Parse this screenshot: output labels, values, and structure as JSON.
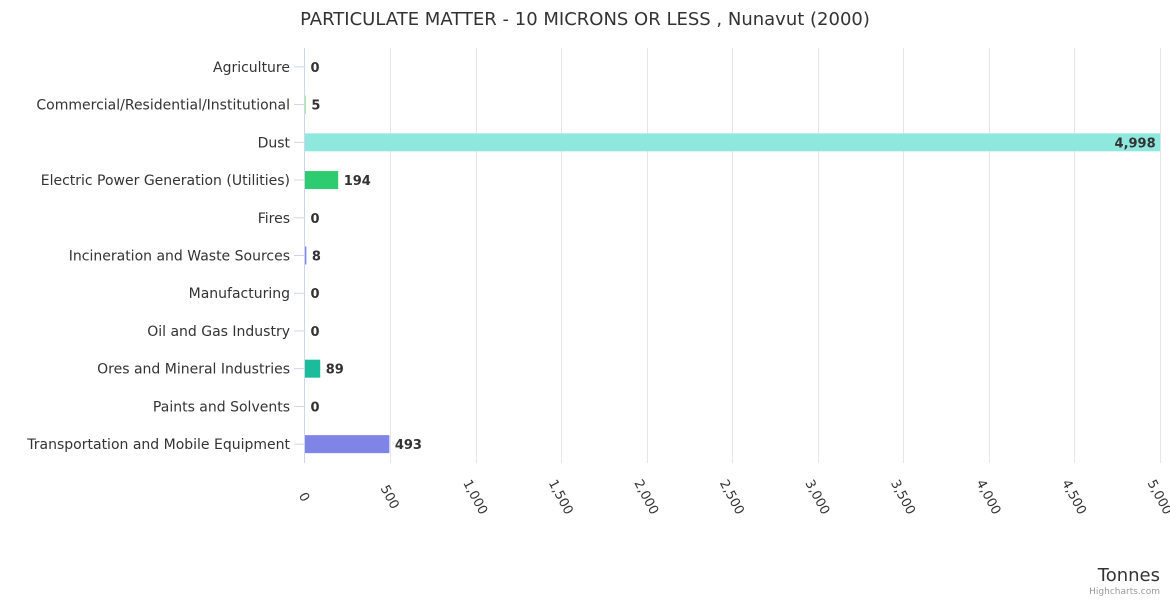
{
  "chart_data": {
    "type": "bar",
    "orientation": "horizontal",
    "title": "PARTICULATE MATTER - 10 MICRONS OR LESS , Nunavut (2000)",
    "xlabel": "Tonnes",
    "categories": [
      "Agriculture",
      "Commercial/Residential/Institutional",
      "Dust",
      "Electric Power Generation (Utilities)",
      "Fires",
      "Incineration and Waste Sources",
      "Manufacturing",
      "Oil and Gas Industry",
      "Ores and Mineral Industries",
      "Paints and Solvents",
      "Transportation and Mobile Equipment"
    ],
    "values": [
      0,
      5,
      4998,
      194,
      0,
      8,
      0,
      0,
      89,
      0,
      493
    ],
    "value_labels": [
      "0",
      "5",
      "4,998",
      "194",
      "0",
      "8",
      "0",
      "0",
      "89",
      "0",
      "493"
    ],
    "colors": [
      "#7cb5ec",
      "#90ed7d",
      "#8fe8dd",
      "#2ecc71",
      "#f7a35c",
      "#8085e9",
      "#f15c80",
      "#e4d354",
      "#1abc9c",
      "#91e8e1",
      "#7f84e6"
    ],
    "xlim": [
      0,
      5000
    ],
    "ticks": [
      0,
      500,
      1000,
      1500,
      2000,
      2500,
      3000,
      3500,
      4000,
      4500,
      5000
    ],
    "tick_labels": [
      "0",
      "500",
      "1,000",
      "1,500",
      "2,000",
      "2,500",
      "3,000",
      "3,500",
      "4,000",
      "4,500",
      "5,000"
    ],
    "grid": true,
    "legend": "none"
  },
  "credits": "Highcharts.com"
}
